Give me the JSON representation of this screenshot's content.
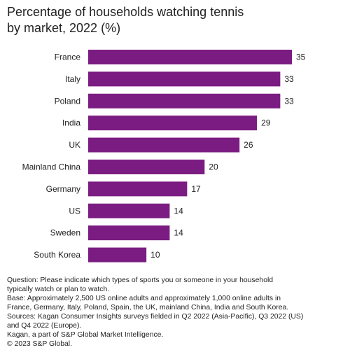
{
  "title_line1": "Percentage of households watching tennis",
  "title_line2": "by market, 2022 (%)",
  "bar_color": "#7b1c82",
  "chart_data": {
    "type": "bar",
    "orientation": "horizontal",
    "title": "Percentage of households watching tennis by market, 2022 (%)",
    "categories": [
      "France",
      "Italy",
      "Poland",
      "India",
      "UK",
      "Mainland China",
      "Germany",
      "US",
      "Sweden",
      "South Korea"
    ],
    "values": [
      35,
      33,
      33,
      29,
      26,
      20,
      17,
      14,
      14,
      10
    ],
    "value_labels": [
      "35",
      "33",
      "33",
      "29",
      "26",
      "20",
      "17",
      "14",
      "14",
      "10"
    ],
    "xlim": [
      0,
      35
    ],
    "grid": false,
    "legend": "none"
  },
  "footnotes": [
    "Question: Please indicate which types of sports you or someone in your household",
    "typically watch or plan to watch.",
    "Base: Approximately 2,500 US online adults and approximately 1,000 online adults in",
    "France, Germany, Italy, Poland, Spain, the UK, mainland China, India and South Korea.",
    "Sources: Kagan Consumer Insights surveys fielded in Q2 2022 (Asia-Pacific), Q3 2022 (US)",
    "and Q4 2022 (Europe).",
    "Kagan, a part of S&P Global Market Intelligence.",
    "© 2023 S&P Global."
  ]
}
